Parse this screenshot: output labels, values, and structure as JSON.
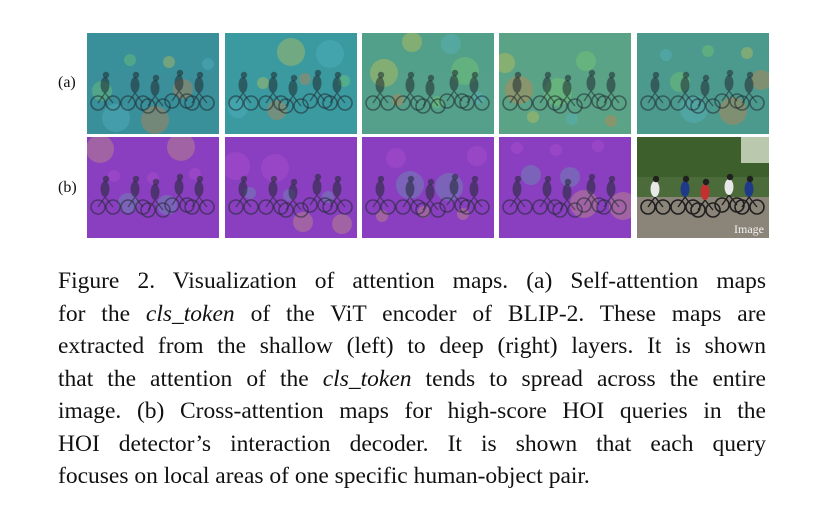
{
  "figure": {
    "row_labels": [
      "(a)",
      "(b)"
    ],
    "image_label": "Image",
    "rows": [
      {
        "id": "a",
        "tiles": [
          {
            "kind": "self-attention",
            "tint": "#3a8f9a"
          },
          {
            "kind": "self-attention",
            "tint": "#3b9aa0"
          },
          {
            "kind": "self-attention",
            "tint": "#54a08a"
          },
          {
            "kind": "self-attention",
            "tint": "#5aa387"
          },
          {
            "kind": "self-attention",
            "tint": "#4c9a8e"
          }
        ]
      },
      {
        "id": "b",
        "tiles": [
          {
            "kind": "cross-attention",
            "tint": "#8a3fc0"
          },
          {
            "kind": "cross-attention",
            "tint": "#8a3fc0"
          },
          {
            "kind": "cross-attention",
            "tint": "#8a3fc0"
          },
          {
            "kind": "cross-attention",
            "tint": "#8a3fc0"
          },
          {
            "kind": "original-image",
            "tint": "#6f6a5e"
          }
        ]
      }
    ]
  },
  "caption": {
    "lines": [
      [
        "Figure 2. Visualization of attention maps. (a) Self-attention maps"
      ],
      [
        "for the ",
        {
          "i": "cls_token"
        },
        " of the ViT encoder of BLIP-2. These maps are"
      ],
      [
        "extracted from the shallow (left) to deep (right) layers. It is shown"
      ],
      [
        "that the attention of the ",
        {
          "i": "cls_token"
        },
        " tends to spread across the entire"
      ],
      [
        "image. (b) Cross-attention maps for high-score HOI queries in the"
      ],
      [
        "HOI detector’s interaction decoder.  It is shown that each query"
      ],
      [
        "focuses on local areas of one specific human-object pair."
      ]
    ]
  }
}
